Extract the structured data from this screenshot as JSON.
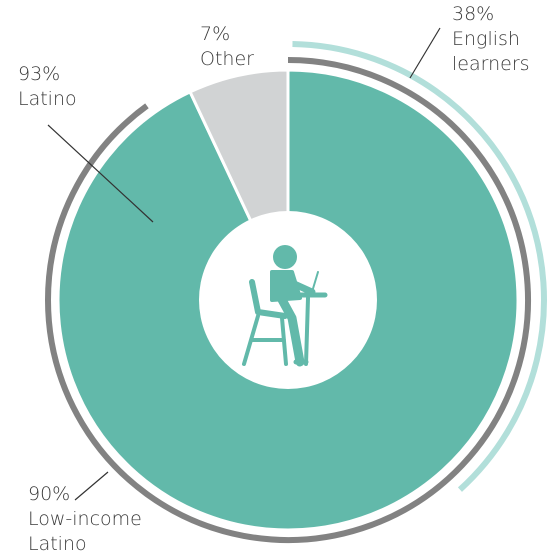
{
  "chart_data": {
    "type": "pie",
    "categories": [
      "Latino",
      "Other"
    ],
    "values": [
      93,
      7
    ],
    "value_labels": [
      "93%",
      "7%"
    ],
    "colors": [
      "#62b9aa",
      "#d1d3d4"
    ],
    "rings": [
      {
        "lines": [
          "Low-income",
          "Latino"
        ],
        "value": 90,
        "value_label": "90%",
        "color": "#828282"
      },
      {
        "lines": [
          "English",
          "learners"
        ],
        "value": 38,
        "value_label": "38%",
        "color": "#b2dfda"
      }
    ]
  }
}
